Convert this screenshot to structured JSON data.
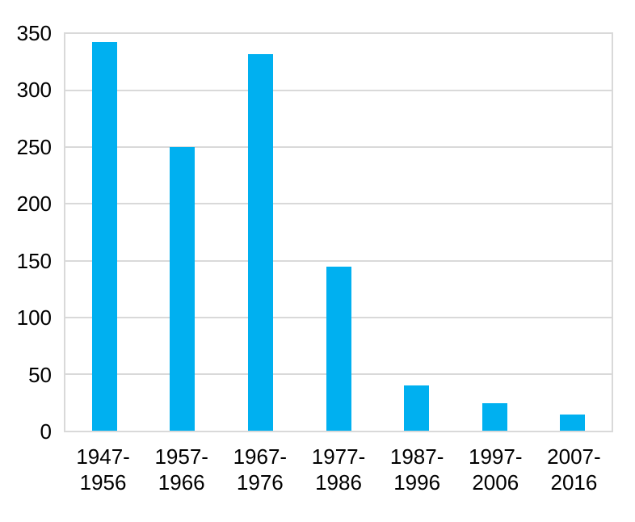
{
  "chart_data": {
    "type": "bar",
    "categories": [
      "1947-\n1956",
      "1957-\n1966",
      "1967-\n1976",
      "1977-\n1986",
      "1987-\n1996",
      "1997-\n2006",
      "2007-\n2016"
    ],
    "values": [
      343,
      250,
      332,
      145,
      40,
      24,
      14
    ],
    "title": "",
    "xlabel": "",
    "ylabel": "",
    "ylim": [
      0,
      350
    ],
    "ytick_step": 50,
    "ytick_labels": [
      "0",
      "50",
      "100",
      "150",
      "200",
      "250",
      "300",
      "350"
    ],
    "grid": true,
    "legend_position": "none",
    "bar_color": "#00B0F0",
    "gridline_color": "#D9D9D9",
    "plot_border_color": "#D9D9D9",
    "text_color": "#000000",
    "background_color": "#FFFFFF"
  }
}
